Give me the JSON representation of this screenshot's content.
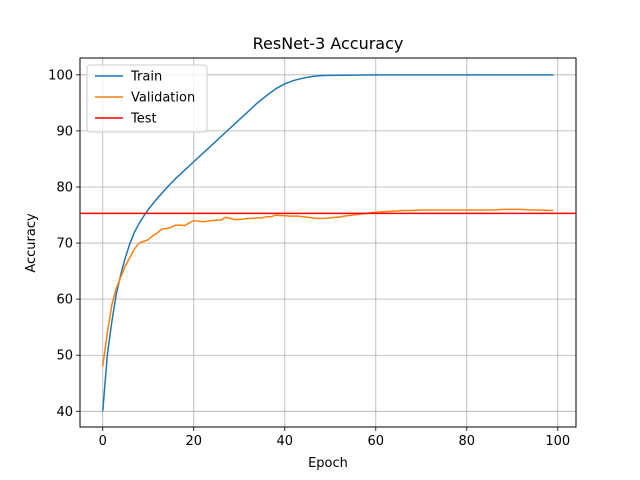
{
  "chart_data": {
    "type": "line",
    "title": "ResNet-3 Accuracy",
    "xlabel": "Epoch",
    "ylabel": "Accuracy",
    "xlim": [
      -5,
      104
    ],
    "ylim": [
      37.2,
      103
    ],
    "xticks": [
      0,
      20,
      40,
      60,
      80,
      100
    ],
    "yticks": [
      40,
      50,
      60,
      70,
      80,
      90,
      100
    ],
    "grid": true,
    "legend_position": "upper-left",
    "series": [
      {
        "name": "Train",
        "color": "#1f77b4",
        "x": [
          0,
          1,
          2,
          3,
          4,
          5,
          6,
          7,
          8,
          9,
          10,
          12,
          14,
          16,
          18,
          20,
          22,
          24,
          26,
          28,
          30,
          32,
          34,
          36,
          38,
          40,
          42,
          44,
          46,
          48,
          50,
          55,
          60,
          70,
          80,
          90,
          99
        ],
        "values": [
          40,
          50,
          56,
          61,
          64.5,
          67.5,
          70,
          72,
          73.5,
          74.8,
          76,
          78,
          79.8,
          81.5,
          83,
          84.5,
          86,
          87.5,
          89,
          90.5,
          92,
          93.5,
          95,
          96.3,
          97.5,
          98.4,
          99,
          99.4,
          99.7,
          99.85,
          99.9,
          99.95,
          100,
          100,
          100,
          100,
          100
        ]
      },
      {
        "name": "Validation",
        "color": "#ff7f0e",
        "x": [
          0,
          1,
          2,
          3,
          4,
          5,
          6,
          7,
          8,
          9,
          10,
          11,
          12,
          13,
          14,
          15,
          16,
          17,
          18,
          19,
          20,
          21,
          22,
          23,
          24,
          25,
          26,
          27,
          28,
          29,
          30,
          31,
          32,
          33,
          34,
          35,
          36,
          37,
          38,
          39,
          40,
          41,
          42,
          43,
          44,
          45,
          46,
          47,
          48,
          49,
          50,
          51,
          52,
          53,
          54,
          55,
          56,
          57,
          58,
          59,
          60,
          62,
          64,
          66,
          68,
          70,
          72,
          74,
          76,
          78,
          80,
          82,
          84,
          86,
          88,
          90,
          92,
          94,
          96,
          99
        ],
        "values": [
          48,
          54,
          59,
          62,
          64,
          66,
          67.5,
          69,
          70,
          70.3,
          70.6,
          71.3,
          71.8,
          72.5,
          72.6,
          72.8,
          73.2,
          73.2,
          73.1,
          73.6,
          74,
          73.9,
          73.8,
          73.9,
          74,
          74.1,
          74.1,
          74.6,
          74.4,
          74.2,
          74.2,
          74.3,
          74.4,
          74.4,
          74.5,
          74.5,
          74.7,
          74.7,
          75,
          74.9,
          74.9,
          74.8,
          74.8,
          74.8,
          74.7,
          74.6,
          74.5,
          74.4,
          74.4,
          74.4,
          74.5,
          74.6,
          74.6,
          74.8,
          74.9,
          75,
          75.1,
          75.2,
          75.3,
          75.4,
          75.5,
          75.6,
          75.7,
          75.8,
          75.8,
          75.9,
          75.9,
          75.9,
          75.9,
          75.9,
          75.9,
          75.9,
          75.9,
          75.9,
          76,
          76,
          76,
          75.9,
          75.9,
          75.8
        ]
      },
      {
        "name": "Test",
        "color": "#ff0000",
        "type": "hline",
        "value": 75.3
      }
    ]
  }
}
